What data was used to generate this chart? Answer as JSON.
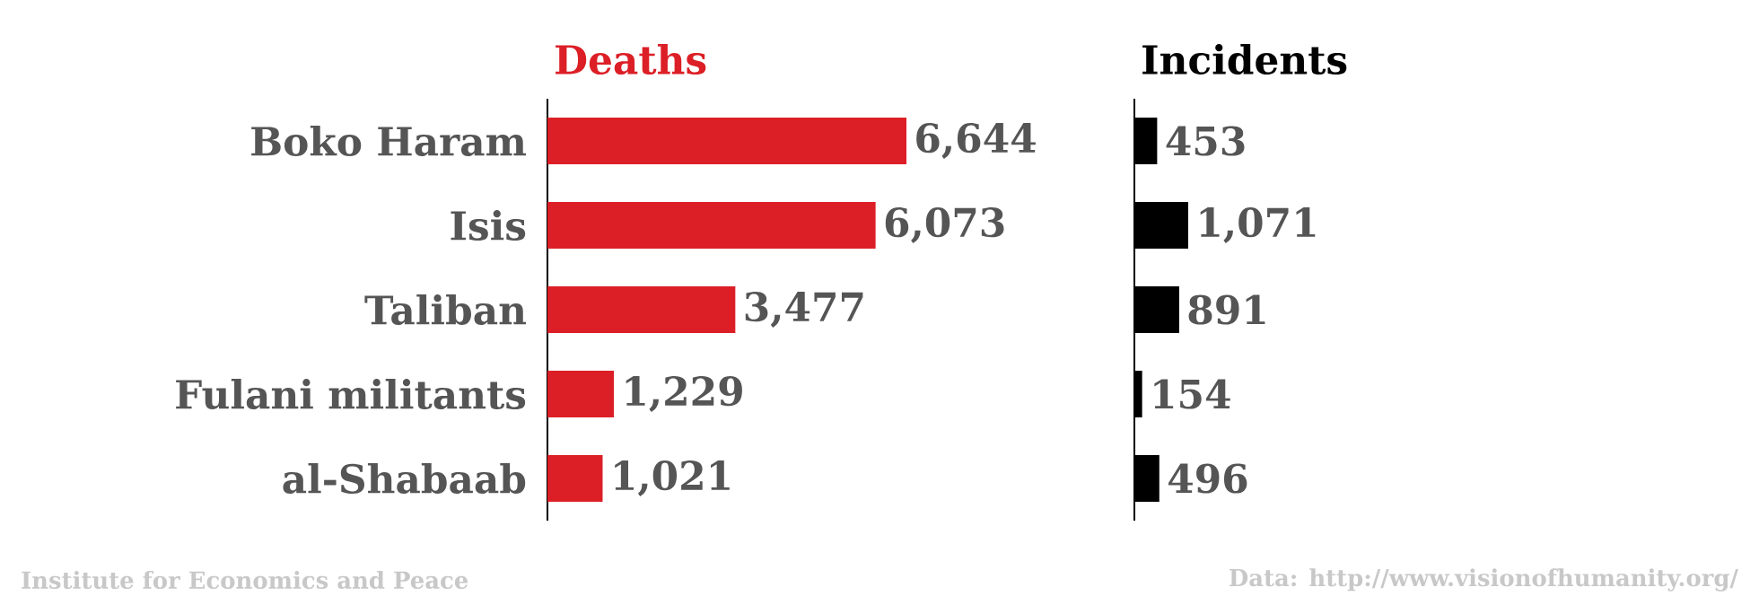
{
  "chart_data": [
    {
      "type": "bar",
      "orientation": "horizontal",
      "title": "Deaths",
      "categories": [
        "Boko Haram",
        "Isis",
        "Taliban",
        "Fulani militants",
        "al-Shabaab"
      ],
      "values": [
        6644,
        6073,
        3477,
        1229,
        1021
      ],
      "value_labels": [
        "6,644",
        "6,073",
        "3,477",
        "1,229",
        "1,021"
      ],
      "color": "#dc1f26",
      "tick_labels": "y",
      "annotations": [
        "Institute for Economics and Peace"
      ]
    },
    {
      "type": "bar",
      "orientation": "horizontal",
      "title": "Incidents",
      "categories": [
        null,
        null,
        null,
        null,
        null
      ],
      "values": [
        453,
        1071,
        891,
        154,
        496
      ],
      "value_labels": [
        "453",
        "1,071",
        "891",
        "154",
        "496"
      ],
      "color": "#000000",
      "tick_labels": false,
      "annotations": [
        "Data: http://www.visionofhumanity.org/"
      ]
    }
  ]
}
